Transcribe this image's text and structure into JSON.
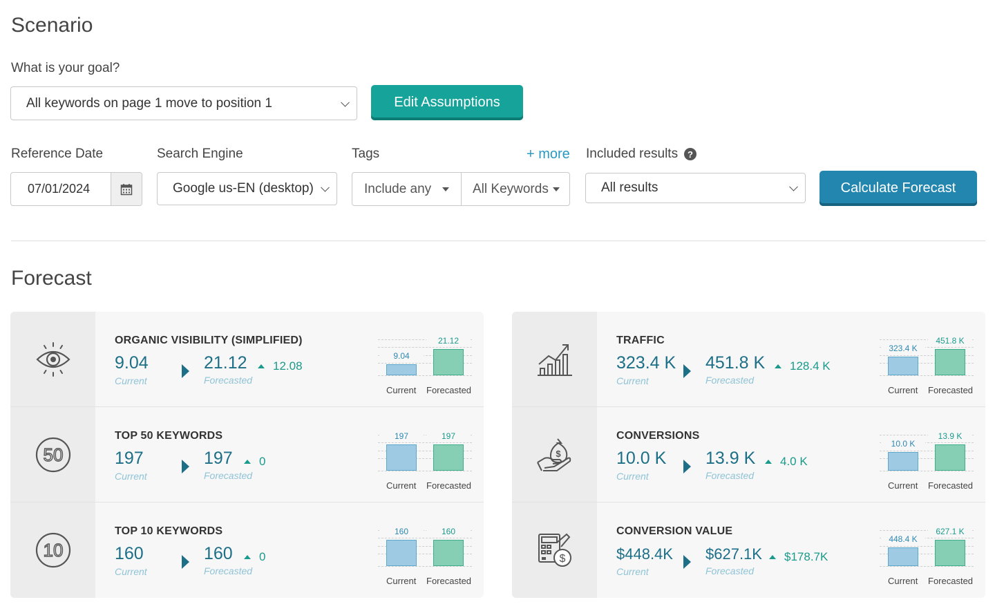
{
  "scenario": {
    "title": "Scenario",
    "goal_label": "What is your goal?",
    "goal_value": "All keywords on page 1 move to position 1",
    "edit_button": "Edit Assumptions"
  },
  "filters": {
    "reference_date_label": "Reference Date",
    "reference_date_value": "07/01/2024",
    "search_engine_label": "Search Engine",
    "search_engine_value": "Google us-EN (desktop)",
    "tags_label": "Tags",
    "more_link": "+ more",
    "tags_mode": "Include any",
    "tags_value": "All Keywords",
    "included_results_label": "Included results",
    "included_results_value": "All results",
    "calculate_button": "Calculate Forecast"
  },
  "forecast": {
    "title": "Forecast",
    "current_label": "Current",
    "forecasted_label": "Forecasted",
    "left": [
      {
        "icon": "eye-icon",
        "name": "ORGANIC VISIBILITY (SIMPLIFIED)",
        "current": "9.04",
        "forecasted": "21.12",
        "delta": "12.08",
        "bar_current": "9.04",
        "bar_forecasted": "21.12",
        "cur_ratio": 0.43,
        "fc_ratio": 1.0
      },
      {
        "icon": "top50-icon",
        "name": "TOP 50 KEYWORDS",
        "current": "197",
        "forecasted": "197",
        "delta": "0",
        "bar_current": "197",
        "bar_forecasted": "197",
        "cur_ratio": 1.0,
        "fc_ratio": 1.0
      },
      {
        "icon": "top10-icon",
        "name": "TOP 10 KEYWORDS",
        "current": "160",
        "forecasted": "160",
        "delta": "0",
        "bar_current": "160",
        "bar_forecasted": "160",
        "cur_ratio": 1.0,
        "fc_ratio": 1.0
      }
    ],
    "right": [
      {
        "icon": "growth-chart-icon",
        "name": "TRAFFIC",
        "current": "323.4 K",
        "forecasted": "451.8 K",
        "delta": "128.4 K",
        "bar_current": "323.4 K",
        "bar_forecasted": "451.8 K",
        "cur_ratio": 0.72,
        "fc_ratio": 1.0
      },
      {
        "icon": "money-bag-hand-icon",
        "name": "CONVERSIONS",
        "current": "10.0 K",
        "forecasted": "13.9 K",
        "delta": "4.0 K",
        "bar_current": "10.0 K",
        "bar_forecasted": "13.9 K",
        "cur_ratio": 0.72,
        "fc_ratio": 1.0
      },
      {
        "icon": "calculator-dollar-icon",
        "name": "CONVERSION VALUE",
        "current": "$448.4K",
        "forecasted": "$627.1K",
        "delta": "$178.7K",
        "bar_current": "448.4 K",
        "bar_forecasted": "627.1 K",
        "cur_ratio": 0.72,
        "fc_ratio": 1.0
      }
    ]
  },
  "colors": {
    "accent_teal": "#16a49a",
    "accent_blue": "#2386ae",
    "metric_blue": "#1d6f88",
    "delta_green": "#1a9a8b"
  }
}
